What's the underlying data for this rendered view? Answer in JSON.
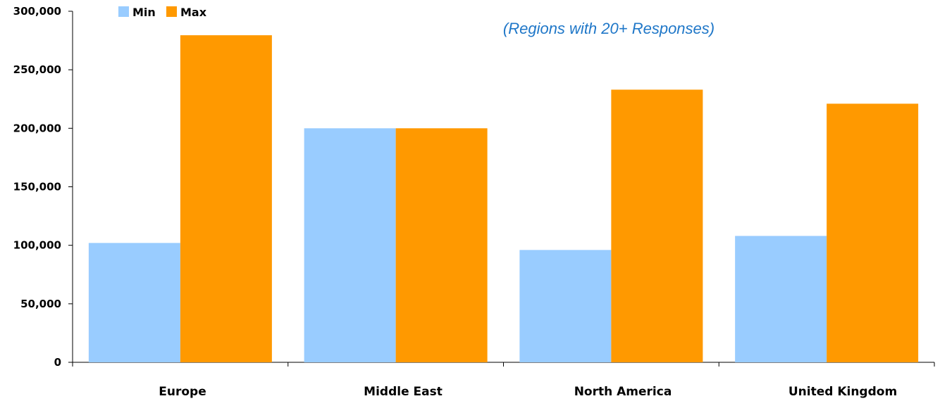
{
  "chart_data": {
    "type": "bar",
    "title": "",
    "subtitle": "(Regions with 20+ Responses)",
    "xlabel": "",
    "ylabel": "",
    "categories": [
      "Europe",
      "Middle East",
      "North America",
      "United Kingdom"
    ],
    "series": [
      {
        "name": "Min",
        "color": "#99ccff",
        "values": [
          102000,
          200000,
          96000,
          108000
        ]
      },
      {
        "name": "Max",
        "color": "#ff9900",
        "values": [
          279500,
          200000,
          233000,
          221000
        ]
      }
    ],
    "ylim": [
      0,
      300000
    ],
    "yticks": [
      0,
      50000,
      100000,
      150000,
      200000,
      250000,
      300000
    ],
    "ytick_labels": [
      "0",
      "50,000",
      "100,000",
      "150,000",
      "200,000",
      "250,000",
      "300,000"
    ],
    "grid": false,
    "legend_position": "top-left",
    "subtitle_color": "#1f77c8"
  }
}
